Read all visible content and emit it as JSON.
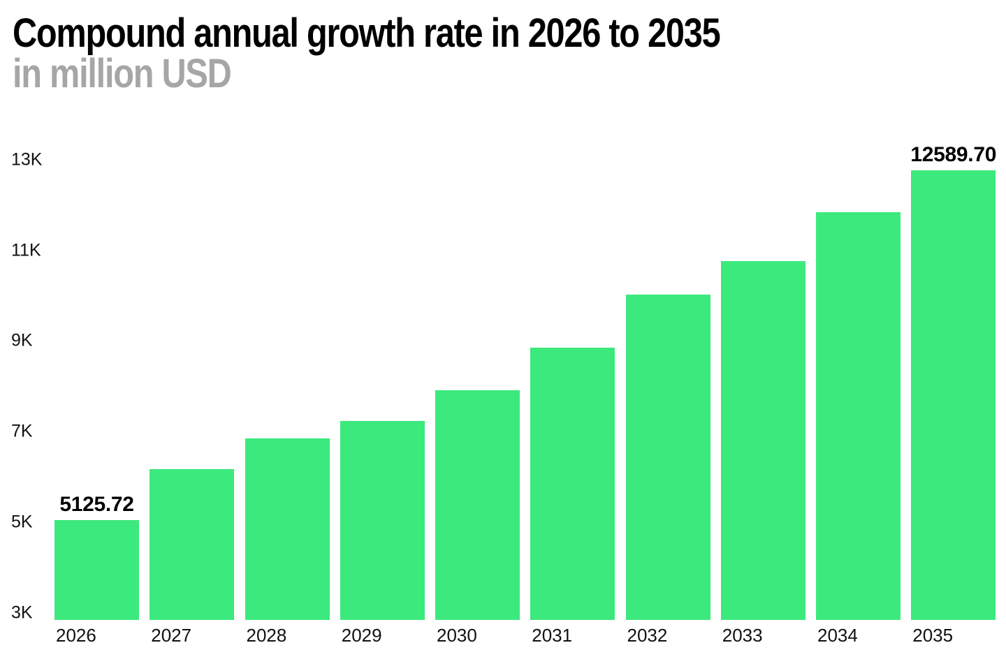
{
  "header": {
    "title": "Compound annual growth rate in 2026 to 2035",
    "subtitle": "in million USD"
  },
  "chart_data": {
    "type": "bar",
    "title": "Compound annual growth rate in 2026 to 2035",
    "subtitle": "in million USD",
    "unit": "million USD",
    "categories": [
      "2026",
      "2027",
      "2028",
      "2029",
      "2030",
      "2031",
      "2032",
      "2033",
      "2034",
      "2035"
    ],
    "values": [
      5125.72,
      6210,
      6875,
      7240,
      7895,
      8810,
      9930,
      10655,
      11695,
      12589.7
    ],
    "data_labels": [
      "5125.72",
      "",
      "",
      "",
      "",
      "",
      "",
      "",
      "",
      "12589.70"
    ],
    "y_ticks": [
      {
        "label": "3K",
        "value": 3000
      },
      {
        "label": "5K",
        "value": 5000
      },
      {
        "label": "7K",
        "value": 7000
      },
      {
        "label": "9K",
        "value": 9000
      },
      {
        "label": "11K",
        "value": 11000
      },
      {
        "label": "13K",
        "value": 13000
      }
    ],
    "ylim": [
      3000,
      13450
    ],
    "xlabel": "",
    "ylabel": "",
    "grid": false,
    "legend": false,
    "bar_color": "#3CE97D"
  },
  "colors": {
    "background": "#FFFFFF",
    "bar": "#3CE97D",
    "title": "#000000",
    "subtitle": "#A6A6A6",
    "axis_text": "#111111",
    "value_label": "#000000"
  }
}
